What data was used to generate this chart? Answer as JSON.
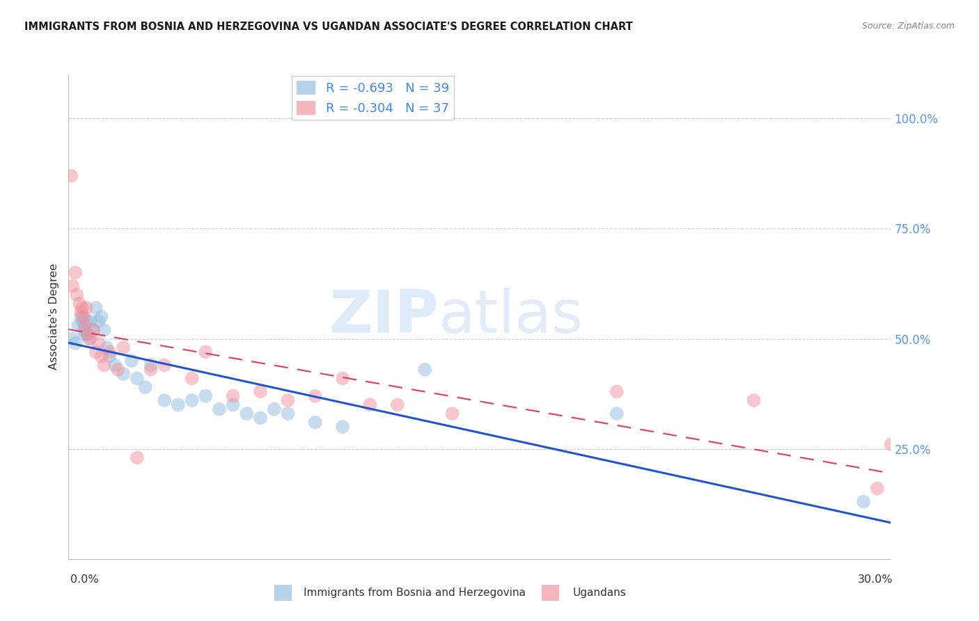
{
  "title": "IMMIGRANTS FROM BOSNIA AND HERZEGOVINA VS UGANDAN ASSOCIATE'S DEGREE CORRELATION CHART",
  "source": "Source: ZipAtlas.com",
  "bosnia_R": -0.693,
  "bosnia_N": 39,
  "uganda_R": -0.304,
  "uganda_N": 37,
  "bosnia_color": "#90bce0",
  "uganda_color": "#f0909c",
  "bosnia_line_color": "#2255cc",
  "uganda_line_color": "#dd4466",
  "legend_text_color": "#4488dd",
  "right_axis_color": "#5599ee",
  "xlim": [
    0,
    30
  ],
  "ylim": [
    0,
    110
  ],
  "ytick_vals": [
    0,
    25,
    50,
    75,
    100
  ],
  "ytick_labels": [
    "",
    "25.0%",
    "50.0%",
    "75.0%",
    "100.0%"
  ],
  "grid_vals": [
    25,
    50,
    75,
    100
  ],
  "watermark_zip": "ZIP",
  "watermark_atlas": "atlas",
  "bottom_legend_bosnia": "Immigrants from Bosnia and Herzegovina",
  "bottom_legend_uganda": "Ugandans",
  "bosnia_x": [
    0.15,
    0.25,
    0.35,
    0.45,
    0.5,
    0.55,
    0.6,
    0.65,
    0.7,
    0.75,
    0.8,
    0.9,
    1.0,
    1.1,
    1.2,
    1.3,
    1.4,
    1.5,
    1.7,
    2.0,
    2.3,
    2.5,
    2.8,
    3.0,
    3.5,
    4.0,
    4.5,
    5.0,
    5.5,
    6.0,
    6.5,
    7.0,
    7.5,
    8.0,
    9.0,
    10.0,
    13.0,
    20.0,
    29.0
  ],
  "bosnia_y": [
    50,
    49,
    53,
    55,
    54,
    52,
    51,
    54,
    51,
    50,
    54,
    52,
    57,
    54,
    55,
    52,
    48,
    46,
    44,
    42,
    45,
    41,
    39,
    44,
    36,
    35,
    36,
    37,
    34,
    35,
    33,
    32,
    34,
    33,
    31,
    30,
    43,
    33,
    13
  ],
  "uganda_x": [
    0.1,
    0.15,
    0.25,
    0.3,
    0.4,
    0.45,
    0.5,
    0.55,
    0.6,
    0.65,
    0.7,
    0.8,
    0.9,
    1.0,
    1.1,
    1.2,
    1.3,
    1.5,
    1.8,
    2.0,
    2.5,
    3.0,
    3.5,
    4.5,
    5.0,
    6.0,
    7.0,
    8.0,
    9.0,
    10.0,
    11.0,
    12.0,
    14.0,
    20.0,
    25.0,
    29.5,
    30.0
  ],
  "uganda_y": [
    87,
    62,
    65,
    60,
    58,
    56,
    57,
    55,
    53,
    57,
    51,
    50,
    52,
    47,
    49,
    46,
    44,
    47,
    43,
    48,
    23,
    43,
    44,
    41,
    47,
    37,
    38,
    36,
    37,
    41,
    35,
    35,
    33,
    38,
    36,
    16,
    26
  ]
}
